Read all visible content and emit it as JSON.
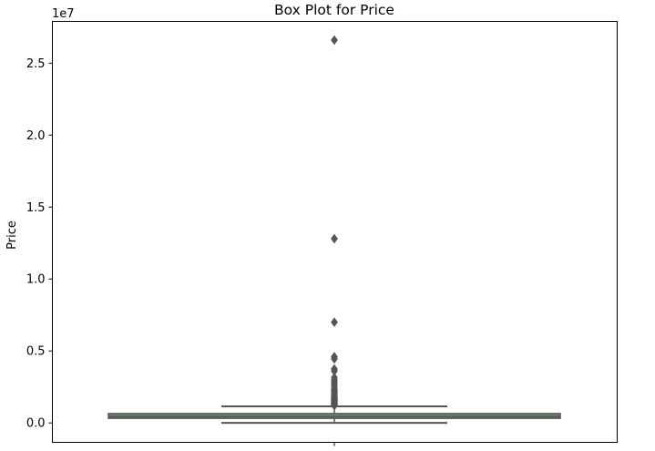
{
  "chart_data": {
    "type": "box",
    "title": "Box Plot for Price",
    "ylabel": "Price",
    "xlabel": "",
    "y_offset_label": "1e7",
    "ylim": [
      -1350000,
      27900000
    ],
    "yticks": [
      0,
      5000000,
      10000000,
      15000000,
      20000000,
      25000000
    ],
    "ytick_labels": [
      "0.0",
      "0.5",
      "1.0",
      "1.5",
      "2.0",
      "2.5"
    ],
    "xticks": [
      0
    ],
    "xtick_labels": [
      ""
    ],
    "grid": false,
    "box": {
      "q1": 320000,
      "median": 450000,
      "q3": 650000,
      "whisker_low": 0,
      "whisker_high": 1150000,
      "box_color": "#6b8a6b",
      "line_color": "#555555"
    },
    "outliers": [
      1200000,
      1250000,
      1300000,
      1350000,
      1400000,
      1450000,
      1500000,
      1550000,
      1600000,
      1650000,
      1700000,
      1750000,
      1800000,
      1900000,
      2000000,
      2100000,
      2200000,
      2300000,
      2400000,
      2550000,
      2700000,
      2850000,
      3000000,
      3150000,
      3600000,
      3750000,
      4450000,
      4600000,
      7000000,
      12800000,
      26600000
    ],
    "marker": {
      "shape": "diamond",
      "color": "#555555"
    }
  }
}
